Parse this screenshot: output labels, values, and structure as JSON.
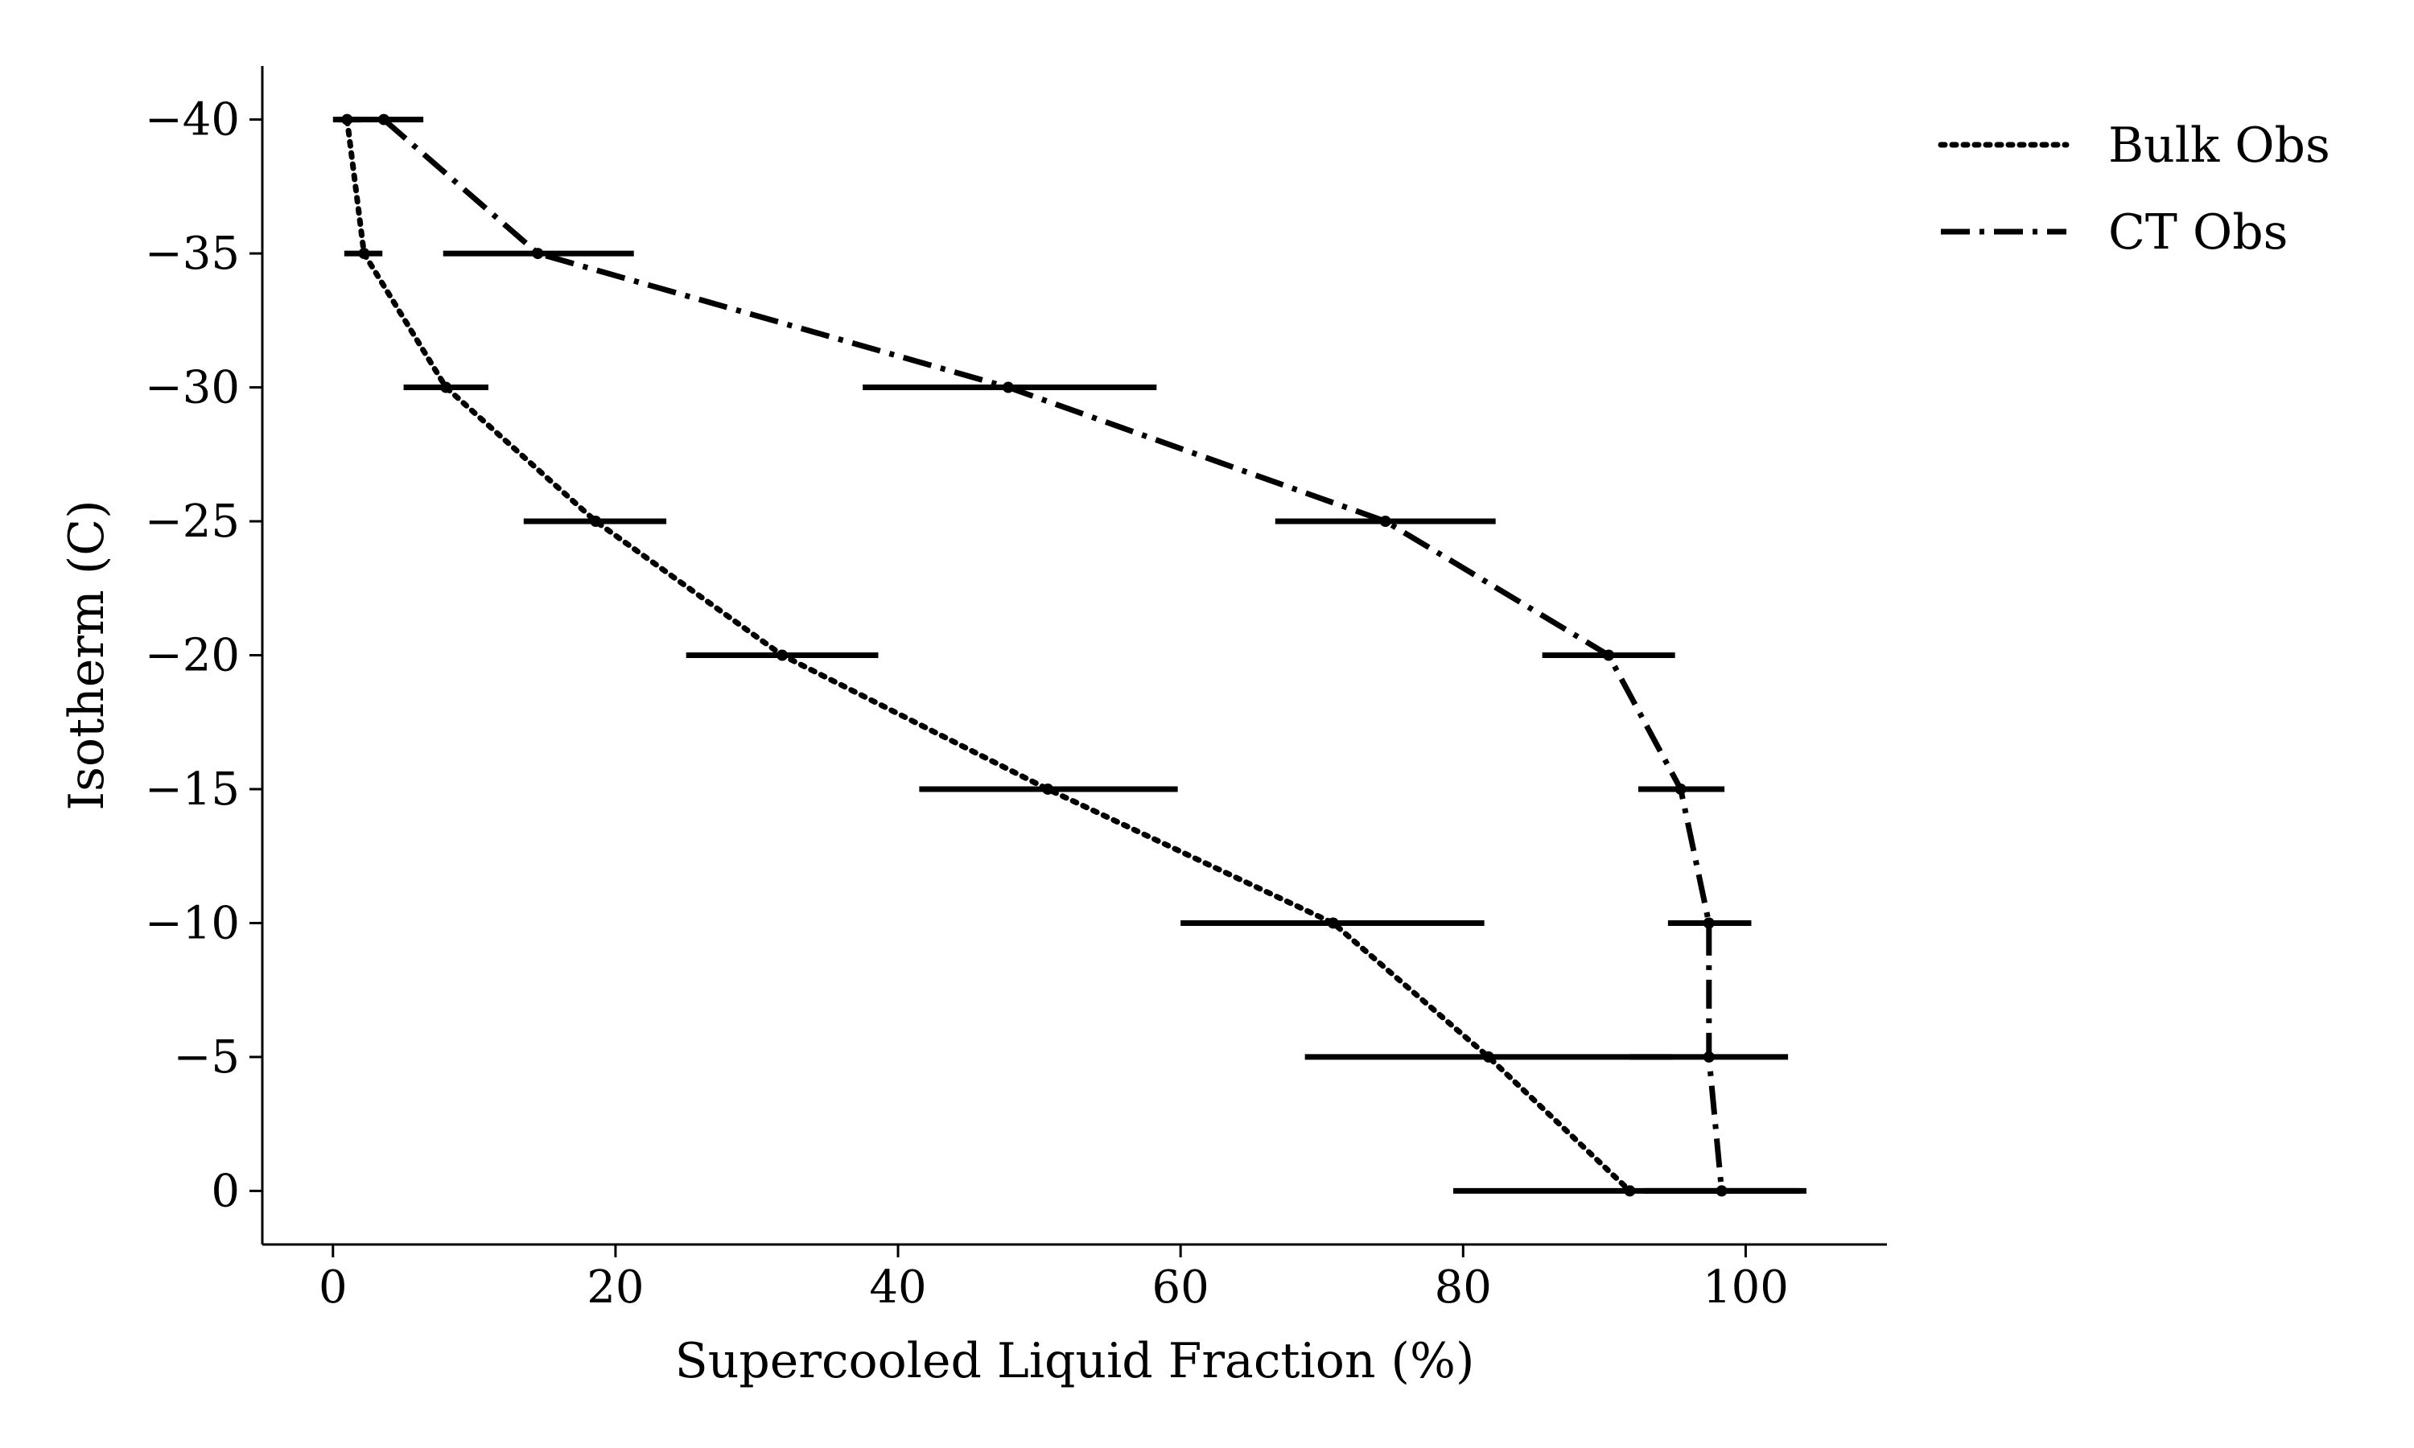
{
  "chart_data": {
    "type": "line",
    "title": "",
    "xlabel": "Supercooled Liquid Fraction (%)",
    "ylabel": "Isotherm (C)",
    "xlim": [
      -5,
      110
    ],
    "ylim": [
      2,
      -42
    ],
    "x_ticks": [
      0,
      20,
      40,
      60,
      80,
      100
    ],
    "y_ticks": [
      -40,
      -35,
      -30,
      -25,
      -20,
      -15,
      -10,
      -5,
      0
    ],
    "x_tick_labels": [
      "0",
      "20",
      "40",
      "60",
      "80",
      "100"
    ],
    "y_tick_labels": [
      "−40",
      "−35",
      "−30",
      "−25",
      "−20",
      "−15",
      "−10",
      "−5",
      "0"
    ],
    "grid": false,
    "legend_position": "top-right, outside plot",
    "color": "#000000",
    "series": [
      {
        "name": "Bulk Obs",
        "line_style": "dotted",
        "points": [
          {
            "y": -40,
            "x": 1.0,
            "xmin": 0.0,
            "xmax": 2.0
          },
          {
            "y": -35,
            "x": 2.2,
            "xmin": 0.8,
            "xmax": 3.5
          },
          {
            "y": -30,
            "x": 8.0,
            "xmin": 5.0,
            "xmax": 11.0
          },
          {
            "y": -25,
            "x": 18.6,
            "xmin": 13.5,
            "xmax": 23.6
          },
          {
            "y": -20,
            "x": 31.8,
            "xmin": 25.0,
            "xmax": 38.6
          },
          {
            "y": -15,
            "x": 50.6,
            "xmin": 41.5,
            "xmax": 59.8
          },
          {
            "y": -10,
            "x": 70.8,
            "xmin": 60.0,
            "xmax": 81.5
          },
          {
            "y": -5,
            "x": 81.8,
            "xmin": 68.8,
            "xmax": 94.8
          },
          {
            "y": 0,
            "x": 91.8,
            "xmin": 79.3,
            "xmax": 104.3
          }
        ]
      },
      {
        "name": "CT Obs",
        "line_style": "dashdot",
        "points": [
          {
            "y": -40,
            "x": 3.6,
            "xmin": 0.4,
            "xmax": 6.4
          },
          {
            "y": -35,
            "x": 14.5,
            "xmin": 7.8,
            "xmax": 21.3
          },
          {
            "y": -30,
            "x": 47.8,
            "xmin": 37.5,
            "xmax": 58.3
          },
          {
            "y": -25,
            "x": 74.5,
            "xmin": 66.7,
            "xmax": 82.3
          },
          {
            "y": -20,
            "x": 90.3,
            "xmin": 85.6,
            "xmax": 95.0
          },
          {
            "y": -15,
            "x": 95.4,
            "xmin": 92.4,
            "xmax": 98.5
          },
          {
            "y": -10,
            "x": 97.4,
            "xmin": 94.5,
            "xmax": 100.4
          },
          {
            "y": -5,
            "x": 97.4,
            "xmin": 91.8,
            "xmax": 103.0
          },
          {
            "y": 0,
            "x": 98.3,
            "xmin": 92.8,
            "xmax": 103.8
          }
        ]
      }
    ]
  }
}
